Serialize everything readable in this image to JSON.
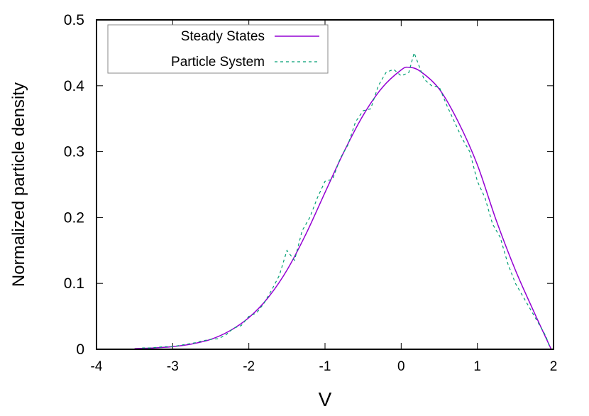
{
  "chart_data": {
    "type": "line",
    "title": "",
    "xlabel": "V",
    "ylabel": "Normalized particle density",
    "xlim": [
      -4,
      2
    ],
    "ylim": [
      0,
      0.5
    ],
    "xticks": [
      -4,
      -3,
      -2,
      -1,
      0,
      1,
      2
    ],
    "xtick_labels": [
      "-4",
      "-3",
      "-2",
      "-1",
      "0",
      "1",
      "2"
    ],
    "yticks": [
      0,
      0.1,
      0.2,
      0.3,
      0.4,
      0.5
    ],
    "ytick_labels": [
      "0",
      "0.1",
      "0.2",
      "0.3",
      "0.4",
      "0.5"
    ],
    "grid": false,
    "legend_position": "top-left",
    "series": [
      {
        "name": "Steady States",
        "color": "#9400d3",
        "style": "solid",
        "x": [
          -3.5,
          -3.25,
          -3,
          -2.75,
          -2.5,
          -2.25,
          -2,
          -1.75,
          -1.5,
          -1.25,
          -1,
          -0.75,
          -0.5,
          -0.25,
          0,
          0.1,
          0.25,
          0.5,
          0.75,
          1,
          1.25,
          1.5,
          1.75,
          1.97
        ],
        "y": [
          0.001,
          0.002,
          0.004,
          0.008,
          0.015,
          0.028,
          0.048,
          0.078,
          0.12,
          0.175,
          0.238,
          0.3,
          0.355,
          0.397,
          0.424,
          0.428,
          0.422,
          0.395,
          0.345,
          0.28,
          0.195,
          0.12,
          0.055,
          0.0
        ]
      },
      {
        "name": "Particle System",
        "color": "#009e73",
        "style": "dashed",
        "x": [
          -3.4,
          -3.3,
          -3.2,
          -3.1,
          -3.0,
          -2.9,
          -2.8,
          -2.7,
          -2.6,
          -2.5,
          -2.4,
          -2.3,
          -2.2,
          -2.1,
          -2.0,
          -1.9,
          -1.8,
          -1.7,
          -1.6,
          -1.5,
          -1.4,
          -1.3,
          -1.2,
          -1.1,
          -1.0,
          -0.9,
          -0.8,
          -0.7,
          -0.6,
          -0.5,
          -0.4,
          -0.3,
          -0.2,
          -0.1,
          0,
          0.1,
          0.17,
          0.3,
          0.4,
          0.5,
          0.6,
          0.7,
          0.8,
          0.9,
          1.0,
          1.1,
          1.2,
          1.3,
          1.4,
          1.5,
          1.6,
          1.7,
          1.8,
          1.9,
          1.95
        ],
        "y": [
          0.002,
          0.002,
          0.003,
          0.004,
          0.004,
          0.006,
          0.008,
          0.01,
          0.013,
          0.015,
          0.016,
          0.022,
          0.032,
          0.036,
          0.05,
          0.055,
          0.07,
          0.09,
          0.112,
          0.15,
          0.135,
          0.18,
          0.2,
          0.23,
          0.255,
          0.258,
          0.29,
          0.31,
          0.345,
          0.362,
          0.365,
          0.4,
          0.42,
          0.425,
          0.415,
          0.42,
          0.45,
          0.41,
          0.4,
          0.398,
          0.37,
          0.345,
          0.32,
          0.3,
          0.255,
          0.23,
          0.19,
          0.17,
          0.13,
          0.1,
          0.08,
          0.06,
          0.04,
          0.02,
          0.003
        ]
      }
    ]
  }
}
